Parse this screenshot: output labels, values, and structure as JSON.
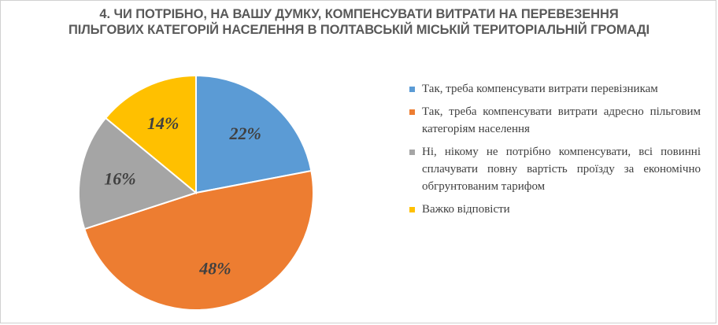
{
  "title_lines": [
    "4. ЧИ ПОТРІБНО, НА ВАШУ ДУМКУ, КОМПЕНСУВАТИ ВИТРАТИ НА ПЕРЕВЕЗЕННЯ",
    "ПІЛЬГОВИХ КАТЕГОРІЙ НАСЕЛЕННЯ В ПОЛТАВСЬКІЙ МІСЬКІЙ ТЕРИТОРІАЛЬНІЙ ГРОМАДІ"
  ],
  "chart_data": {
    "type": "pie",
    "title": "4. ЧИ ПОТРІБНО, НА ВАШУ ДУМКУ, КОМПЕНСУВАТИ ВИТРАТИ НА ПЕРЕВЕЗЕННЯ ПІЛЬГОВИХ КАТЕГОРІЙ НАСЕЛЕННЯ В ПОЛТАВСЬКІЙ МІСЬКІЙ ТЕРИТОРІАЛЬНІЙ ГРОМАДІ",
    "legend_position": "right",
    "slices": [
      {
        "label": "Так, треба компенсувати витрати перевізникам",
        "value": 22,
        "display": "22%",
        "color": "#5b9bd5"
      },
      {
        "label": "Так, треба компенсувати витрати адресно пільговим категоріям населення",
        "value": 48,
        "display": "48%",
        "color": "#ed7d31"
      },
      {
        "label": "Ні, нікому не потрібно компенсувати, всі повинні сплачувати повну вартість проїзду за економічно обгрунтованим тарифом",
        "value": 16,
        "display": "16%",
        "color": "#a5a5a5"
      },
      {
        "label": "Важко відповісти",
        "value": 14,
        "display": "14%",
        "color": "#ffc000"
      }
    ]
  }
}
